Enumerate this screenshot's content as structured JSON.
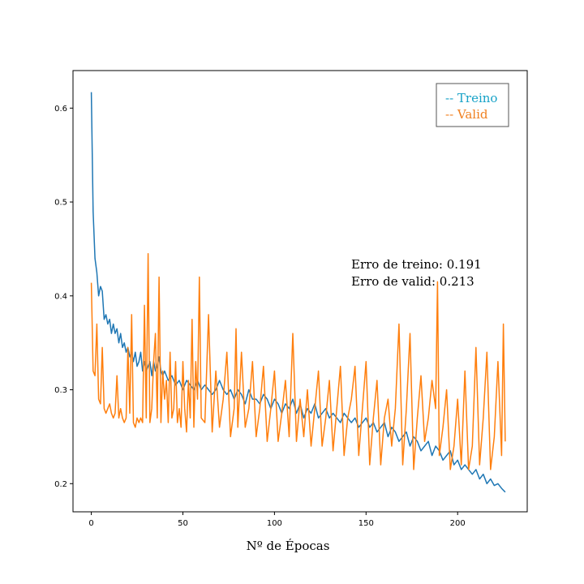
{
  "chart_data": {
    "type": "line",
    "xlabel": "Nº de Épocas",
    "ylabel": "",
    "title": "",
    "xlim": [
      -10,
      238
    ],
    "ylim": [
      0.17,
      0.64
    ],
    "xticks": [
      0,
      50,
      100,
      150,
      200
    ],
    "xtick_labels": [
      "0",
      "50",
      "100",
      "150",
      "200"
    ],
    "yticks": [
      0.2,
      0.3,
      0.4,
      0.5,
      0.6
    ],
    "ytick_labels": [
      "0.2",
      "0.3",
      "0.4",
      "0.5",
      "0.6"
    ],
    "grid": false,
    "legend_position": "top-right",
    "annotation": {
      "line1": "Erro de treino:  0.191",
      "line2": "Erro de valid:  0.213"
    },
    "series": [
      {
        "name": "-- Treino",
        "color": "#1f77b4",
        "legend_color": "#17a2c7",
        "x": [
          0,
          1,
          2,
          3,
          4,
          5,
          6,
          7,
          8,
          9,
          10,
          11,
          12,
          13,
          14,
          15,
          16,
          17,
          18,
          19,
          20,
          21,
          22,
          23,
          24,
          25,
          26,
          27,
          28,
          29,
          30,
          31,
          32,
          33,
          34,
          35,
          36,
          37,
          38,
          39,
          40,
          42,
          44,
          46,
          48,
          50,
          52,
          54,
          56,
          58,
          60,
          62,
          64,
          66,
          68,
          70,
          72,
          74,
          76,
          78,
          80,
          82,
          84,
          86,
          88,
          90,
          92,
          94,
          96,
          98,
          100,
          102,
          104,
          106,
          108,
          110,
          112,
          114,
          116,
          118,
          120,
          122,
          124,
          126,
          128,
          130,
          132,
          134,
          136,
          138,
          140,
          142,
          144,
          146,
          148,
          150,
          152,
          154,
          156,
          158,
          160,
          162,
          164,
          166,
          168,
          170,
          172,
          174,
          176,
          178,
          180,
          182,
          184,
          186,
          188,
          190,
          192,
          194,
          196,
          198,
          200,
          202,
          204,
          206,
          208,
          210,
          212,
          214,
          216,
          218,
          220,
          222,
          224,
          226
        ],
        "values": [
          0.617,
          0.49,
          0.44,
          0.425,
          0.4,
          0.41,
          0.405,
          0.375,
          0.38,
          0.37,
          0.375,
          0.36,
          0.37,
          0.36,
          0.365,
          0.35,
          0.36,
          0.345,
          0.35,
          0.34,
          0.345,
          0.335,
          0.34,
          0.33,
          0.34,
          0.325,
          0.33,
          0.34,
          0.32,
          0.33,
          0.32,
          0.325,
          0.33,
          0.315,
          0.33,
          0.32,
          0.325,
          0.335,
          0.32,
          0.315,
          0.32,
          0.31,
          0.315,
          0.305,
          0.31,
          0.3,
          0.31,
          0.305,
          0.3,
          0.31,
          0.3,
          0.305,
          0.3,
          0.295,
          0.3,
          0.31,
          0.3,
          0.295,
          0.3,
          0.29,
          0.3,
          0.295,
          0.285,
          0.3,
          0.29,
          0.29,
          0.285,
          0.295,
          0.29,
          0.28,
          0.29,
          0.285,
          0.275,
          0.285,
          0.28,
          0.29,
          0.275,
          0.285,
          0.27,
          0.28,
          0.275,
          0.285,
          0.27,
          0.275,
          0.28,
          0.27,
          0.275,
          0.27,
          0.265,
          0.275,
          0.27,
          0.265,
          0.27,
          0.26,
          0.265,
          0.27,
          0.26,
          0.265,
          0.255,
          0.26,
          0.265,
          0.25,
          0.26,
          0.255,
          0.245,
          0.25,
          0.255,
          0.24,
          0.25,
          0.245,
          0.235,
          0.24,
          0.245,
          0.23,
          0.24,
          0.235,
          0.225,
          0.23,
          0.235,
          0.22,
          0.225,
          0.215,
          0.22,
          0.215,
          0.21,
          0.215,
          0.205,
          0.21,
          0.2,
          0.205,
          0.198,
          0.2,
          0.195,
          0.191
        ]
      },
      {
        "name": "-- Valid",
        "color": "#ff7f0e",
        "legend_color": "#f08020",
        "x": [
          0,
          1,
          2,
          3,
          4,
          5,
          6,
          7,
          8,
          9,
          10,
          11,
          12,
          13,
          14,
          15,
          16,
          17,
          18,
          19,
          20,
          21,
          22,
          23,
          24,
          25,
          26,
          27,
          28,
          29,
          30,
          31,
          32,
          33,
          34,
          35,
          36,
          37,
          38,
          39,
          40,
          41,
          42,
          43,
          44,
          45,
          46,
          47,
          48,
          49,
          50,
          51,
          52,
          53,
          54,
          55,
          56,
          57,
          58,
          59,
          60,
          62,
          64,
          66,
          68,
          70,
          72,
          74,
          76,
          78,
          79,
          80,
          82,
          84,
          86,
          88,
          90,
          92,
          94,
          96,
          98,
          100,
          102,
          104,
          106,
          108,
          110,
          112,
          114,
          116,
          118,
          120,
          122,
          124,
          126,
          128,
          130,
          132,
          134,
          136,
          138,
          140,
          142,
          144,
          146,
          148,
          150,
          152,
          154,
          156,
          158,
          160,
          162,
          164,
          166,
          168,
          170,
          172,
          174,
          176,
          178,
          180,
          182,
          184,
          186,
          188,
          189,
          190,
          192,
          194,
          196,
          198,
          200,
          202,
          204,
          206,
          208,
          210,
          212,
          214,
          216,
          218,
          220,
          222,
          224,
          225,
          226
        ],
        "values": [
          0.414,
          0.32,
          0.315,
          0.37,
          0.29,
          0.285,
          0.345,
          0.28,
          0.275,
          0.28,
          0.285,
          0.275,
          0.27,
          0.275,
          0.315,
          0.27,
          0.28,
          0.27,
          0.265,
          0.27,
          0.345,
          0.275,
          0.38,
          0.265,
          0.26,
          0.27,
          0.265,
          0.27,
          0.265,
          0.39,
          0.27,
          0.445,
          0.265,
          0.28,
          0.33,
          0.36,
          0.27,
          0.42,
          0.265,
          0.32,
          0.29,
          0.31,
          0.265,
          0.34,
          0.27,
          0.28,
          0.33,
          0.265,
          0.28,
          0.26,
          0.33,
          0.28,
          0.255,
          0.31,
          0.27,
          0.375,
          0.26,
          0.33,
          0.29,
          0.42,
          0.27,
          0.265,
          0.38,
          0.255,
          0.32,
          0.26,
          0.29,
          0.34,
          0.25,
          0.28,
          0.365,
          0.26,
          0.34,
          0.26,
          0.28,
          0.33,
          0.25,
          0.28,
          0.325,
          0.245,
          0.28,
          0.32,
          0.245,
          0.275,
          0.31,
          0.25,
          0.36,
          0.245,
          0.29,
          0.25,
          0.3,
          0.24,
          0.28,
          0.32,
          0.24,
          0.27,
          0.31,
          0.235,
          0.28,
          0.325,
          0.23,
          0.27,
          0.29,
          0.325,
          0.23,
          0.28,
          0.33,
          0.22,
          0.27,
          0.31,
          0.22,
          0.27,
          0.29,
          0.24,
          0.28,
          0.37,
          0.22,
          0.28,
          0.36,
          0.215,
          0.27,
          0.315,
          0.245,
          0.27,
          0.31,
          0.28,
          0.415,
          0.23,
          0.26,
          0.3,
          0.215,
          0.24,
          0.29,
          0.22,
          0.32,
          0.215,
          0.24,
          0.345,
          0.22,
          0.27,
          0.34,
          0.215,
          0.25,
          0.33,
          0.23,
          0.37,
          0.245
        ]
      }
    ]
  }
}
